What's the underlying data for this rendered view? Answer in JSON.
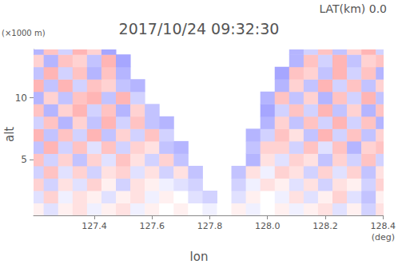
{
  "chart_data": {
    "type": "heatmap",
    "title": "2017/10/24 09:32:30",
    "annotation": "LAT(km) 0.0",
    "x_label": "lon",
    "x_unit": "(deg)",
    "y_label": "alt",
    "y_unit": "(×1000 m)",
    "xlim": [
      127.19,
      128.4
    ],
    "xticks": [
      127.4,
      127.6,
      127.8,
      {
        "value": 128,
        "label": "128.0"
      },
      128.2,
      128.4
    ],
    "ylim": [
      0.5,
      13.9
    ],
    "yticks": [
      5,
      10
    ],
    "grid": false,
    "zlim": [
      -1,
      1
    ],
    "cells": {
      "lon": [
        127.2,
        127.25,
        127.3,
        127.35,
        127.4,
        127.45,
        127.5,
        127.55,
        127.6,
        127.65,
        127.7,
        127.75,
        127.8,
        127.85,
        127.9,
        127.95,
        128.0,
        128.05,
        128.1,
        128.15,
        128.2,
        128.25,
        128.3,
        128.35,
        128.4
      ],
      "alt": [
        1,
        2,
        3,
        4,
        5,
        6,
        7,
        8,
        9,
        10,
        11,
        12,
        13,
        14
      ],
      "values": [
        [
          0.1,
          -0.2,
          0.1,
          0.2,
          -0.1,
          0.1,
          0.2,
          -0.1,
          0.1,
          0,
          0.1,
          0,
          -0.1,
          0,
          0.1,
          -0.1,
          0,
          0.1,
          -0.1,
          0.1,
          0.2,
          -0.2,
          0.1,
          -0.3,
          0.2
        ],
        [
          -0.2,
          0.3,
          -0.1,
          0.2,
          0.1,
          -0.2,
          0.1,
          0.2,
          -0.1,
          0.1,
          0,
          -0.2,
          -0.3,
          null,
          -0.2,
          0.1,
          0,
          -0.1,
          0.2,
          -0.2,
          0.1,
          0.3,
          -0.2,
          -0.4,
          0.1
        ],
        [
          0.3,
          -0.3,
          0.2,
          -0.2,
          0.3,
          0.1,
          -0.3,
          0.2,
          0.1,
          -0.1,
          -0.2,
          -0.3,
          null,
          null,
          -0.3,
          -0.1,
          0.2,
          0.1,
          -0.2,
          0.2,
          -0.3,
          0.2,
          0.1,
          -0.3,
          0.3
        ],
        [
          -0.3,
          0.4,
          -0.2,
          0.3,
          -0.3,
          0.2,
          0.3,
          -0.2,
          0.2,
          -0.3,
          0.2,
          -0.4,
          null,
          null,
          -0.4,
          0.2,
          -0.1,
          0.3,
          0.2,
          -0.3,
          0.3,
          -0.2,
          0.3,
          -0.4,
          0.2
        ],
        [
          0.4,
          -0.3,
          0.3,
          -0.4,
          0.3,
          -0.2,
          0.4,
          0.2,
          -0.3,
          0.3,
          -0.4,
          null,
          null,
          null,
          null,
          -0.5,
          0.2,
          -0.2,
          0.3,
          0.2,
          -0.4,
          0.3,
          -0.3,
          0.4,
          -0.3
        ],
        [
          -0.4,
          0.5,
          -0.3,
          0.4,
          -0.2,
          0.4,
          -0.3,
          0.3,
          0.2,
          -0.4,
          -0.5,
          null,
          null,
          null,
          null,
          -0.4,
          0.3,
          0.3,
          -0.3,
          0.4,
          -0.2,
          0.4,
          -0.5,
          0.3,
          0.4
        ],
        [
          0.5,
          -0.4,
          0.4,
          -0.3,
          0.5,
          -0.4,
          0.3,
          -0.3,
          0.4,
          -0.3,
          null,
          null,
          null,
          null,
          null,
          -0.5,
          -0.3,
          0.4,
          0.2,
          -0.4,
          0.5,
          -0.3,
          0.4,
          -0.4,
          0.3
        ],
        [
          -0.3,
          0.4,
          -0.5,
          0.3,
          -0.4,
          0.5,
          -0.3,
          0.4,
          -0.4,
          -0.5,
          null,
          null,
          null,
          null,
          null,
          null,
          -0.5,
          0.3,
          -0.4,
          0.4,
          -0.3,
          0.5,
          -0.3,
          0.4,
          -0.5
        ],
        [
          0.4,
          -0.5,
          0.3,
          0.5,
          -0.3,
          0.4,
          -0.5,
          0.3,
          -0.4,
          null,
          null,
          null,
          null,
          null,
          null,
          null,
          -0.6,
          -0.3,
          0.4,
          -0.3,
          0.5,
          -0.4,
          0.3,
          -0.5,
          0.4
        ],
        [
          -0.5,
          0.3,
          -0.4,
          0.4,
          0.5,
          -0.4,
          0.5,
          -0.3,
          null,
          null,
          null,
          null,
          null,
          null,
          null,
          null,
          -0.5,
          0.4,
          -0.4,
          0.3,
          -0.5,
          0.4,
          -0.3,
          0.5,
          -0.4
        ],
        [
          0.5,
          -0.4,
          0.5,
          -0.3,
          0.4,
          0.3,
          -0.4,
          -0.5,
          null,
          null,
          null,
          null,
          null,
          null,
          null,
          null,
          null,
          -0.5,
          0.3,
          -0.4,
          0.5,
          -0.3,
          0.4,
          -0.4,
          0.3
        ],
        [
          -0.4,
          0.5,
          -0.3,
          0.4,
          -0.5,
          0.4,
          -0.5,
          null,
          null,
          null,
          null,
          null,
          null,
          null,
          null,
          null,
          null,
          -0.6,
          0.4,
          0.3,
          -0.4,
          0.5,
          -0.3,
          0.4,
          -0.5
        ],
        [
          0.3,
          -0.5,
          0.4,
          0.3,
          -0.4,
          0.5,
          -0.6,
          null,
          null,
          null,
          null,
          null,
          null,
          null,
          null,
          null,
          null,
          null,
          -0.5,
          0.4,
          -0.3,
          0.5,
          -0.4,
          0.3,
          0.4
        ],
        [
          -0.5,
          0.4,
          -0.3,
          0.5,
          0.3,
          -0.6,
          null,
          null,
          null,
          null,
          null,
          null,
          null,
          null,
          null,
          null,
          null,
          null,
          -0.5,
          -0.3,
          0.4,
          -0.4,
          0.3,
          0.5,
          -0.3
        ]
      ]
    }
  }
}
